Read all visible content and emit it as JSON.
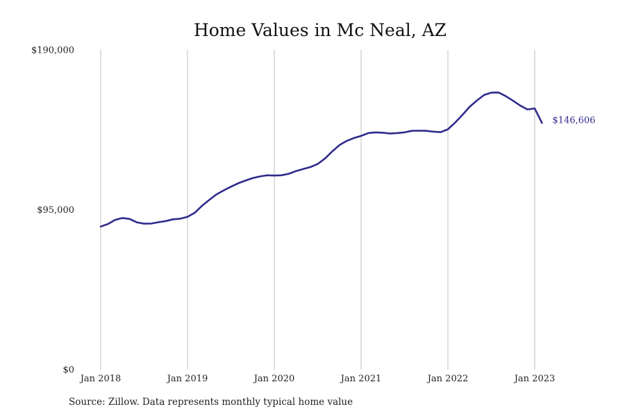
{
  "chart_data": {
    "type": "line",
    "title": "Home Values in Mc Neal, AZ",
    "xlabel": "",
    "ylabel": "",
    "ylim": [
      0,
      190000
    ],
    "y_ticks": [
      {
        "value": 0,
        "label": "$0"
      },
      {
        "value": 95000,
        "label": "$95,000"
      },
      {
        "value": 190000,
        "label": "$190,000"
      }
    ],
    "x_ticks": [
      {
        "value": "2018-01",
        "label": "Jan 2018"
      },
      {
        "value": "2019-01",
        "label": "Jan 2019"
      },
      {
        "value": "2020-01",
        "label": "Jan 2020"
      },
      {
        "value": "2021-01",
        "label": "Jan 2021"
      },
      {
        "value": "2022-01",
        "label": "Jan 2022"
      },
      {
        "value": "2023-01",
        "label": "Jan 2023"
      }
    ],
    "grid": {
      "vertical": true,
      "horizontal": false
    },
    "series_color": "#2e2a8c",
    "end_label": "$146,606",
    "series": [
      {
        "x": [
          "2018-01",
          "2018-02",
          "2018-03",
          "2018-04",
          "2018-05",
          "2018-06",
          "2018-07",
          "2018-08",
          "2018-09",
          "2018-10",
          "2018-11",
          "2018-12",
          "2019-01",
          "2019-02",
          "2019-03",
          "2019-04",
          "2019-05",
          "2019-06",
          "2019-07",
          "2019-08",
          "2019-09",
          "2019-10",
          "2019-11",
          "2019-12",
          "2020-01",
          "2020-02",
          "2020-03",
          "2020-04",
          "2020-05",
          "2020-06",
          "2020-07",
          "2020-08",
          "2020-09",
          "2020-10",
          "2020-11",
          "2020-12",
          "2021-01",
          "2021-02",
          "2021-03",
          "2021-04",
          "2021-05",
          "2021-06",
          "2021-07",
          "2021-08",
          "2021-09",
          "2021-10",
          "2021-11",
          "2021-12",
          "2022-01",
          "2022-02",
          "2022-03",
          "2022-04",
          "2022-05",
          "2022-06",
          "2022-07",
          "2022-08",
          "2022-09",
          "2022-10",
          "2022-11",
          "2022-12",
          "2023-01",
          "2023-02"
        ],
        "values": [
          85000,
          86500,
          89000,
          90100,
          89500,
          87500,
          86700,
          86800,
          87600,
          88300,
          89300,
          89700,
          90800,
          93200,
          97300,
          100800,
          104100,
          106500,
          108700,
          110700,
          112300,
          113800,
          114800,
          115500,
          115300,
          115500,
          116400,
          118000,
          119200,
          120400,
          122200,
          125400,
          129600,
          133400,
          135900,
          137600,
          138900,
          140600,
          141000,
          140800,
          140300,
          140600,
          141000,
          141900,
          142000,
          141900,
          141400,
          141100,
          142800,
          146800,
          151300,
          156200,
          159900,
          163200,
          164600,
          164700,
          162500,
          159800,
          156900,
          154600,
          155200,
          146606
        ]
      }
    ],
    "source_note": "Source: Zillow. Data represents monthly typical home value"
  }
}
